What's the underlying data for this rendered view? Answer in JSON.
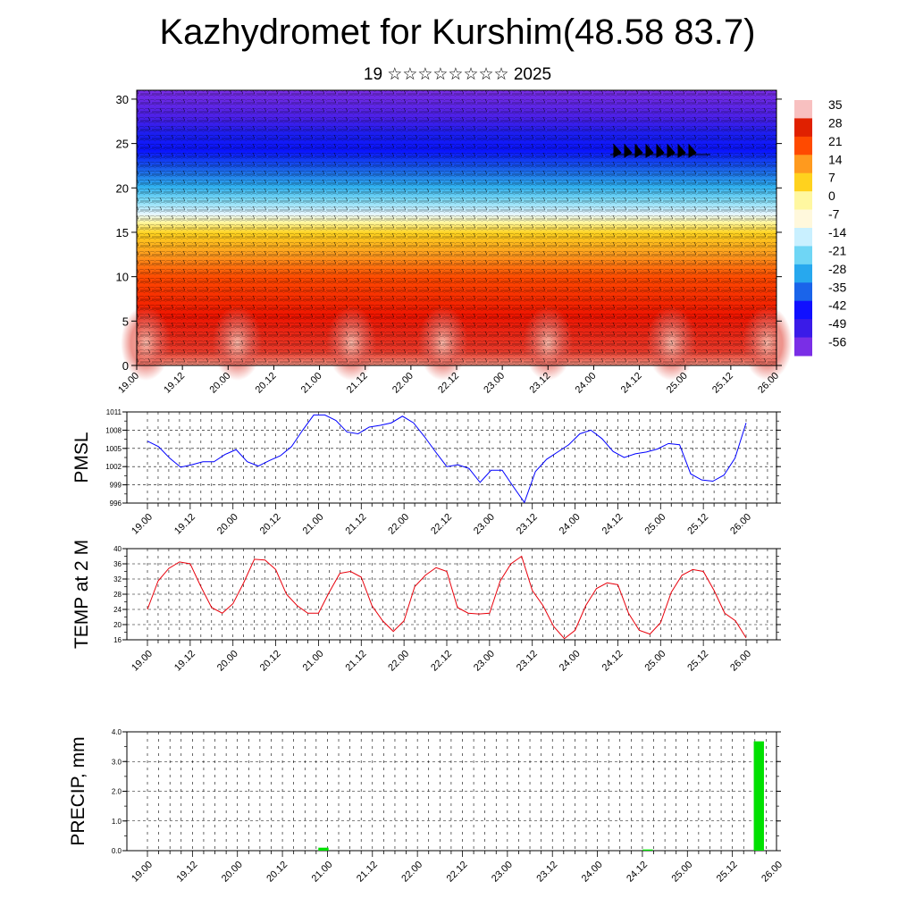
{
  "title": "Kazhydromet for Kurshim(48.58 83.7)",
  "subtitle": "19 ☆☆☆☆☆☆☆☆ 2025",
  "chart_data": [
    {
      "type": "heatmap",
      "title": "",
      "x_ticks": [
        "19.00",
        "19.12",
        "20.00",
        "20.12",
        "21.00",
        "21.12",
        "22.00",
        "22.12",
        "23.00",
        "23.12",
        "24.00",
        "24.12",
        "25.00",
        "25.12",
        "26.00"
      ],
      "y_ticks": [
        0,
        5,
        10,
        15,
        20,
        25,
        30
      ],
      "ylim": [
        0,
        31
      ],
      "colorbar_labels": [
        "35",
        "28",
        "21",
        "14",
        "7",
        "0",
        "-7",
        "-14",
        "-21",
        "-28",
        "-35",
        "-42",
        "-49",
        "-56"
      ],
      "colorbar_colors": [
        "#f8c0c0",
        "#e02000",
        "#ff4a00",
        "#ff9a1e",
        "#ffd21e",
        "#fff7a0",
        "#fff8dc",
        "#c9f0ff",
        "#6fd6f5",
        "#27a8ee",
        "#1a64ea",
        "#1010ff",
        "#3a1be8",
        "#7a2ee6"
      ],
      "note_layers": [
        {
          "height": 0,
          "temp": 32
        },
        {
          "height": 3,
          "temp": 27
        },
        {
          "height": 6,
          "temp": 21
        },
        {
          "height": 9,
          "temp": 17
        },
        {
          "height": 12,
          "temp": 6
        },
        {
          "height": 14,
          "temp": -4
        },
        {
          "height": 16,
          "temp": -12
        },
        {
          "height": 18,
          "temp": -25
        },
        {
          "height": 20,
          "temp": -34
        },
        {
          "height": 22,
          "temp": -44
        },
        {
          "height": 24,
          "temp": -55
        },
        {
          "height": 26,
          "temp": -52
        },
        {
          "height": 28,
          "temp": -58
        },
        {
          "height": 31,
          "temp": -56
        }
      ]
    },
    {
      "type": "line",
      "ylabel": "PMSL",
      "ylim": [
        996,
        1011
      ],
      "y_ticks": [
        996,
        999,
        1002,
        1005,
        1008,
        1011
      ],
      "x_ticks": [
        "19.00",
        "19.12",
        "20.00",
        "20.12",
        "21.00",
        "21.12",
        "22.00",
        "22.12",
        "23.00",
        "23.12",
        "24.00",
        "24.12",
        "25.00",
        "25.12",
        "26.00"
      ],
      "series": [
        {
          "color": "#0000ff",
          "values": [
            1006.2,
            1005.3,
            1003.4,
            1001.9,
            1002.3,
            1002.8,
            1002.8,
            1004.0,
            1004.8,
            1002.8,
            1002.1,
            1003.0,
            1003.8,
            1005.3,
            1008.0,
            1010.5,
            1010.5,
            1009.6,
            1007.7,
            1007.4,
            1008.5,
            1008.8,
            1009.2,
            1010.3,
            1009.2,
            1006.9,
            1004.4,
            1002.0,
            1002.3,
            1001.7,
            999.4,
            1001.4,
            1001.4,
            998.7,
            996.1,
            1001.2,
            1003.2,
            1004.4,
            1005.6,
            1007.4,
            1008.0,
            1006.6,
            1004.5,
            1003.5,
            1004.1,
            1004.4,
            1004.9,
            1005.8,
            1005.6,
            1000.8,
            999.8,
            999.6,
            1000.6,
            1003.4,
            1009.2
          ]
        }
      ]
    },
    {
      "type": "line",
      "ylabel": "TEMP at 2 M",
      "ylim": [
        16,
        40
      ],
      "y_ticks": [
        16,
        20,
        24,
        28,
        32,
        36,
        40
      ],
      "x_ticks": [
        "19.00",
        "19.12",
        "20.00",
        "20.12",
        "21.00",
        "21.12",
        "22.00",
        "22.12",
        "23.00",
        "23.12",
        "24.00",
        "24.12",
        "25.00",
        "25.12",
        "26.00"
      ],
      "series": [
        {
          "color": "#e8000b",
          "values": [
            24.0,
            31.5,
            34.8,
            36.5,
            36.0,
            30.0,
            24.5,
            23.0,
            25.5,
            31.0,
            37.2,
            37.0,
            34.5,
            28.0,
            25.0,
            23.0,
            23.0,
            28.5,
            33.5,
            34.0,
            32.5,
            25.0,
            21.0,
            18.2,
            21.0,
            30.0,
            33.0,
            35.0,
            34.0,
            24.5,
            23.0,
            22.8,
            23.0,
            31.5,
            36.0,
            38.0,
            29.0,
            25.0,
            19.5,
            16.3,
            18.5,
            25.0,
            29.5,
            31.0,
            30.5,
            23.0,
            18.5,
            17.5,
            20.5,
            28.5,
            33.0,
            34.5,
            34.0,
            29.0,
            23.0,
            21.0,
            16.5
          ]
        }
      ]
    },
    {
      "type": "bar",
      "ylabel": "PRECIP, mm",
      "ylim": [
        0,
        4
      ],
      "y_ticks": [
        "0.0",
        "1.0",
        "2.0",
        "3.0",
        "4.0"
      ],
      "x_ticks": [
        "19.00",
        "19.12",
        "20.00",
        "20.12",
        "21.00",
        "21.12",
        "22.00",
        "22.12",
        "23.00",
        "23.12",
        "24.00",
        "24.12",
        "25.00",
        "25.12",
        "26.00"
      ],
      "series": [
        {
          "color": "#00e000",
          "bars": [
            {
              "step": 19,
              "value": 0.1
            },
            {
              "step": 54,
              "value": 0.04
            },
            {
              "step": 66,
              "value": 3.68
            }
          ]
        }
      ]
    }
  ]
}
